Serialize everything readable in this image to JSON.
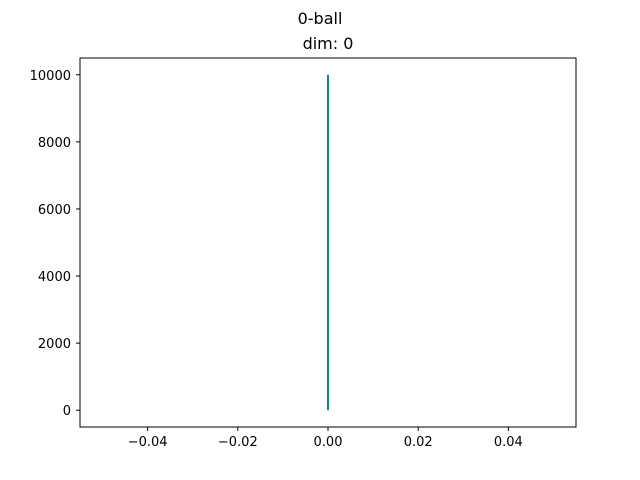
{
  "chart_data": {
    "type": "histogram",
    "suptitle": "0-ball",
    "title": "dim: 0",
    "xlabel": "",
    "ylabel": "",
    "xlim": [
      -0.055,
      0.055
    ],
    "ylim": [
      -500,
      10500
    ],
    "xticks": [
      -0.04,
      -0.02,
      0.0,
      0.02,
      0.04
    ],
    "xtick_labels": [
      "−0.04",
      "−0.02",
      "0.00",
      "0.02",
      "0.04"
    ],
    "yticks": [
      0,
      2000,
      4000,
      6000,
      8000,
      10000
    ],
    "ytick_labels": [
      "0",
      "2000",
      "4000",
      "6000",
      "8000",
      "10000"
    ],
    "bars": [
      {
        "x": 0.0,
        "value": 10000
      }
    ],
    "bar_color": "#1f77b4",
    "edge_color": "#2ca02c",
    "grid": false
  }
}
